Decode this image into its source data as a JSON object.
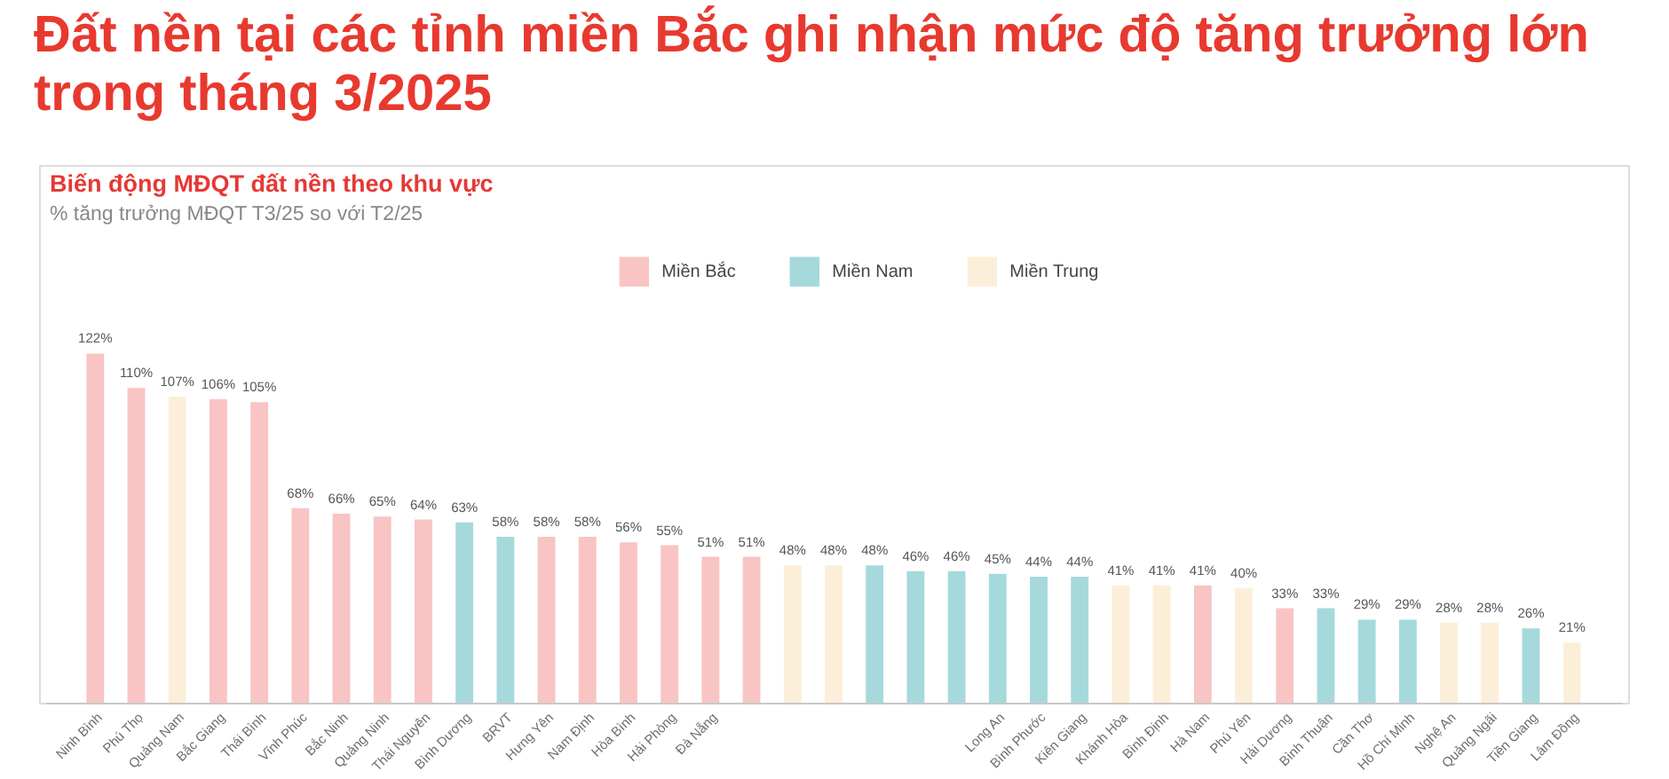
{
  "chart_data": {
    "type": "bar",
    "title": "Đất nền tại các tỉnh miền Bắc ghi nhận mức độ tăng trưởng lớn trong tháng 3/2025",
    "subtitle": "Biến động MĐQT đất nền theo khu vực",
    "annotations": [
      "% tăng trưởng MĐQT T3/25 so với T2/25"
    ],
    "categories": [
      "Ninh Bình",
      "Phú Thọ",
      "Quảng Nam",
      "Bắc Giang",
      "Thái Bình",
      "Vĩnh Phúc",
      "Bắc Ninh",
      "Quảng Ninh",
      "Thái Nguyên",
      "Bình Dương",
      "BRVT",
      "Hưng Yên",
      "Nam Định",
      "Hòa Bình",
      "Hải Phòng",
      "Đà Nẵng",
      null,
      null,
      null,
      null,
      null,
      null,
      "Long An",
      "Bình Phước",
      "Kiên Giang",
      "Khánh Hòa",
      "Bình Định",
      "Hà Nam",
      "Phú Yên",
      "Hải Dương",
      "Bình Thuận",
      "Cần Thơ",
      "Hồ Chí Minh",
      "Nghệ An",
      "Quảng Ngãi",
      "Tiền Giang",
      "Lâm Đồng"
    ],
    "stacked": true,
    "legend": "top",
    "series": [
      {
        "name": "Miền Bắc",
        "color": "#f9c4c4",
        "values": [
          122,
          110,
          null,
          106,
          105,
          68,
          66,
          65,
          64,
          null,
          null,
          58,
          58,
          56,
          55,
          51,
          51,
          null,
          null,
          null,
          null,
          null,
          null,
          null,
          null,
          null,
          null,
          41,
          null,
          33,
          null,
          null,
          null,
          null,
          null,
          null,
          null
        ],
        "value_labels": [
          "122%",
          "110%",
          null,
          "106%",
          "105%",
          "68%",
          "66%",
          "65%",
          "64%",
          null,
          null,
          "58%",
          "58%",
          "56%",
          "55%",
          "51%",
          "51%",
          null,
          null,
          null,
          null,
          null,
          null,
          null,
          null,
          null,
          null,
          "41%",
          null,
          "33%",
          null,
          null,
          null,
          null,
          null,
          null,
          null
        ]
      },
      {
        "name": "Miền Nam",
        "color": "#a6d9dc",
        "values": [
          null,
          null,
          null,
          null,
          null,
          null,
          null,
          null,
          null,
          63,
          58,
          null,
          null,
          null,
          null,
          null,
          null,
          null,
          null,
          48,
          46,
          46,
          45,
          44,
          44,
          null,
          null,
          null,
          null,
          null,
          33,
          29,
          29,
          null,
          null,
          26,
          null
        ],
        "value_labels": [
          null,
          null,
          null,
          null,
          null,
          null,
          null,
          null,
          null,
          "63%",
          "58%",
          null,
          null,
          null,
          null,
          null,
          null,
          null,
          null,
          "48%",
          "46%",
          "46%",
          "45%",
          "44%",
          "44%",
          null,
          null,
          null,
          null,
          null,
          "33%",
          "29%",
          "29%",
          null,
          null,
          "26%",
          null
        ]
      },
      {
        "name": "Miền Trung",
        "color": "#fcefd9",
        "values": [
          null,
          null,
          107,
          null,
          null,
          null,
          null,
          null,
          null,
          null,
          null,
          null,
          null,
          null,
          null,
          null,
          null,
          48,
          48,
          null,
          null,
          null,
          null,
          null,
          null,
          41,
          41,
          null,
          40,
          null,
          null,
          null,
          null,
          28,
          28,
          null,
          21
        ],
        "value_labels": [
          null,
          null,
          "107%",
          null,
          null,
          null,
          null,
          null,
          null,
          null,
          null,
          null,
          null,
          null,
          null,
          null,
          null,
          "48%",
          "48%",
          null,
          null,
          null,
          null,
          null,
          null,
          "41%",
          "41%",
          null,
          "40%",
          null,
          null,
          null,
          null,
          "28%",
          "28%",
          null,
          "21%"
        ]
      }
    ]
  }
}
